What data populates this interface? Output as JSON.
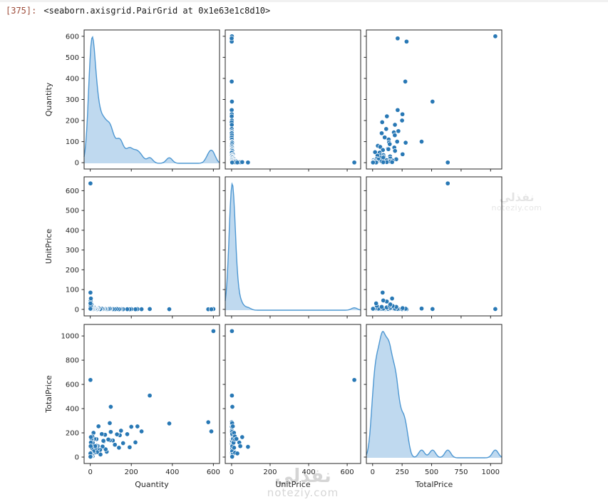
{
  "header": {
    "prompt": "[375]:",
    "repr": "<seaborn.axisgrid.PairGrid at 0x1e63e1c8d10>"
  },
  "watermark": {
    "title": "نفذلي",
    "domain": "noteziy.com"
  },
  "chart_data": {
    "type": "scatter",
    "subtype": "pairplot-matrix",
    "diagonal": "kde",
    "title": "",
    "legend": "none",
    "grid": false,
    "variables": [
      "Quantity",
      "UnitPrice",
      "TotalPrice"
    ],
    "colors": {
      "point": "#2878b5",
      "point_edge": "#ffffff",
      "kde_line": "#4d97d2",
      "kde_fill": "rgba(114,170,219,0.45)",
      "spine": "#262626"
    },
    "axes": {
      "Quantity": {
        "lim": [
          -30,
          630
        ],
        "yticks": [
          0,
          100,
          200,
          300,
          400,
          500,
          600
        ],
        "xticks": [
          0,
          200,
          400,
          600
        ]
      },
      "UnitPrice": {
        "lim": [
          -33,
          670
        ],
        "yticks": [
          0,
          100,
          200,
          300,
          400,
          500,
          600
        ],
        "xticks": [
          0,
          200,
          400,
          600
        ]
      },
      "TotalPrice": {
        "lim": [
          -53,
          1095
        ],
        "yticks": [
          0,
          200,
          400,
          600,
          800,
          1000
        ],
        "xticks": [
          0,
          250,
          500,
          750,
          1000
        ]
      }
    },
    "records_columns": [
      "Quantity",
      "UnitPrice",
      "TotalPrice"
    ],
    "records": [
      [
        600,
        1.75,
        1040
      ],
      [
        575,
        0.5,
        288
      ],
      [
        385,
        0.72,
        277
      ],
      [
        290,
        1.75,
        508
      ],
      [
        590,
        0.36,
        212
      ],
      [
        1,
        637,
        637
      ],
      [
        1,
        85,
        85
      ],
      [
        100,
        4.15,
        415
      ],
      [
        250,
        0.85,
        212
      ],
      [
        230,
        1.1,
        253
      ],
      [
        220,
        0.55,
        121
      ],
      [
        200,
        1.25,
        250
      ],
      [
        192,
        0.42,
        81
      ],
      [
        180,
        1.05,
        189
      ],
      [
        160,
        0.72,
        115
      ],
      [
        150,
        1.45,
        218
      ],
      [
        144,
        1.25,
        180
      ],
      [
        140,
        0.55,
        77
      ],
      [
        130,
        1.45,
        188
      ],
      [
        120,
        0.85,
        102
      ],
      [
        110,
        1.25,
        137
      ],
      [
        100,
        2.08,
        208
      ],
      [
        96,
        1.45,
        139
      ],
      [
        95,
        2.95,
        280
      ],
      [
        88,
        1.65,
        145
      ],
      [
        80,
        0.55,
        44
      ],
      [
        75,
        0.85,
        64
      ],
      [
        72,
        2.55,
        184
      ],
      [
        66,
        1.95,
        129
      ],
      [
        64,
        2.1,
        134
      ],
      [
        60,
        1.45,
        87
      ],
      [
        56,
        3.4,
        190
      ],
      [
        50,
        0.42,
        21
      ],
      [
        48,
        1.25,
        60
      ],
      [
        40,
        6.35,
        254
      ],
      [
        36,
        1.85,
        67
      ],
      [
        36,
        2.55,
        92
      ],
      [
        33,
        1.25,
        41
      ],
      [
        30,
        4.95,
        148
      ],
      [
        28,
        3.39,
        95
      ],
      [
        25,
        2.95,
        74
      ],
      [
        24,
        3.75,
        90
      ],
      [
        20,
        7.5,
        150
      ],
      [
        18,
        1.95,
        35
      ],
      [
        16,
        12.5,
        200
      ],
      [
        15,
        3.25,
        49
      ],
      [
        12,
        9.95,
        119
      ],
      [
        12,
        0.65,
        8
      ],
      [
        10,
        16.95,
        170
      ],
      [
        9,
        2.1,
        19
      ],
      [
        8,
        18,
        144
      ],
      [
        6,
        12.75,
        77
      ],
      [
        6,
        25,
        150
      ],
      [
        5,
        0.85,
        4
      ],
      [
        4,
        4.95,
        20
      ],
      [
        3,
        39.95,
        120
      ],
      [
        2,
        45,
        90
      ],
      [
        2,
        18,
        36
      ],
      [
        2,
        1.65,
        3
      ],
      [
        1,
        30,
        30
      ],
      [
        1,
        2.95,
        3
      ],
      [
        3,
        55,
        165
      ]
    ]
  }
}
